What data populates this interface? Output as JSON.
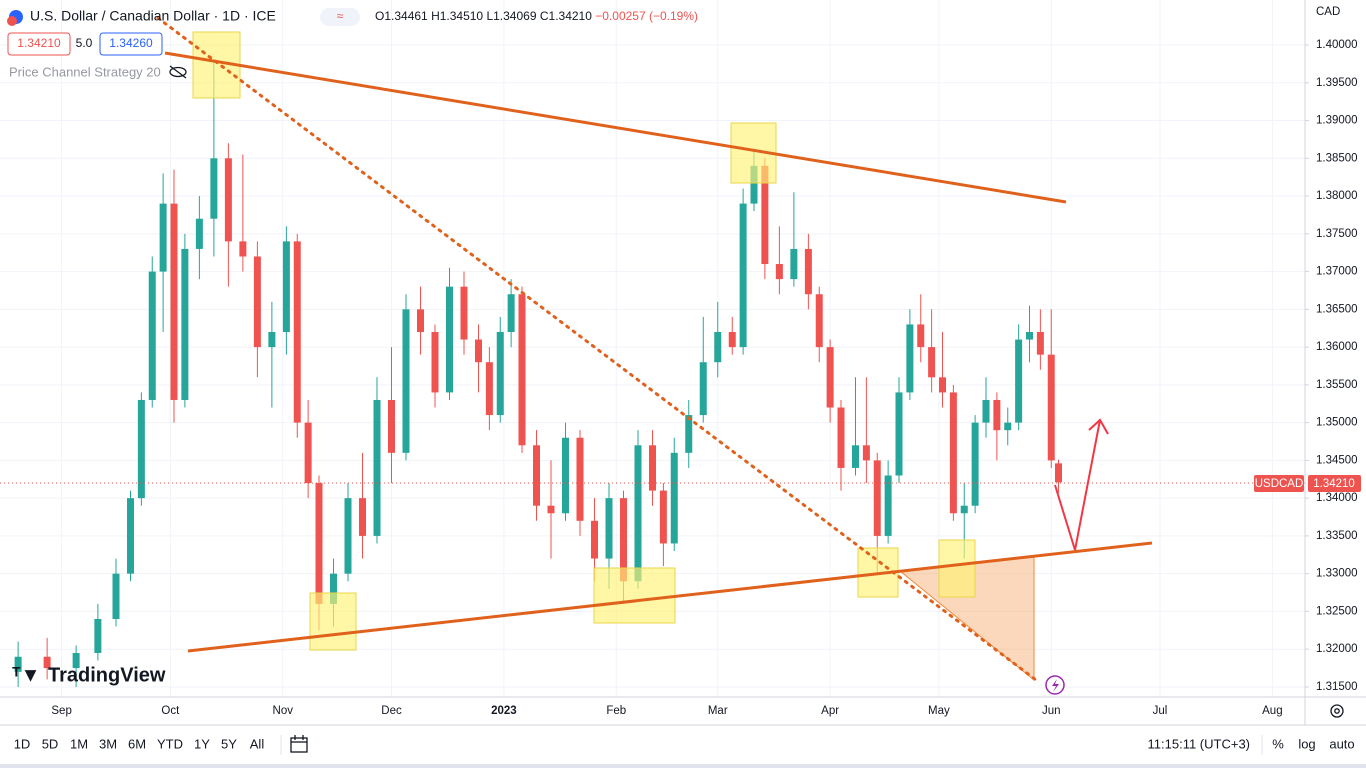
{
  "header": {
    "title": "U.S. Dollar / Canadian Dollar · 1D · ICE",
    "open": "O1.34461",
    "high": "H1.34510",
    "low": "L1.34069",
    "close": "C1.34210",
    "change": "−0.00257 (−0.19%)",
    "sell": "1.34210",
    "spread": "5.0",
    "buy": "1.34260",
    "indicator": "Price Channel Strategy 20"
  },
  "logo": "TradingView",
  "currency": "CAD",
  "price_label": {
    "symbol": "USDCAD",
    "price": "1.34210"
  },
  "toolbar": {
    "ranges": [
      "1D",
      "5D",
      "1M",
      "3M",
      "6M",
      "YTD",
      "1Y",
      "5Y",
      "All"
    ],
    "clock": "11:15:11 (UTC+3)",
    "percent": "%",
    "log": "log",
    "auto": "auto"
  },
  "chart_data": {
    "type": "candlestick",
    "up_color": "#26a69a",
    "down_color": "#ef5350",
    "grid": true,
    "x": [
      -12,
      -4,
      4,
      10,
      15,
      19,
      22,
      25,
      28,
      31,
      34,
      38,
      42,
      46,
      50,
      54,
      58,
      62,
      65,
      68,
      71,
      75,
      79,
      83,
      87,
      91,
      95,
      99,
      103,
      107,
      111,
      115,
      118,
      121,
      124,
      127,
      131,
      135,
      139,
      143,
      147,
      151,
      155,
      159,
      163,
      166,
      169,
      173,
      177,
      181,
      185,
      188,
      191,
      194,
      198,
      202,
      206,
      209,
      212,
      215,
      219,
      222,
      225,
      228,
      231,
      234,
      237,
      240,
      243,
      246,
      249,
      252,
      255,
      258,
      261,
      264,
      267,
      270,
      273,
      275
    ],
    "open": [
      1.317,
      1.319,
      1.3175,
      1.3195,
      1.324,
      1.33,
      1.34,
      1.353,
      1.37,
      1.379,
      1.353,
      1.373,
      1.377,
      1.385,
      1.374,
      1.372,
      1.36,
      1.362,
      1.374,
      1.35,
      1.342,
      1.326,
      1.33,
      1.34,
      1.335,
      1.353,
      1.346,
      1.365,
      1.362,
      1.354,
      1.368,
      1.361,
      1.358,
      1.351,
      1.362,
      1.367,
      1.347,
      1.339,
      1.338,
      1.348,
      1.337,
      1.332,
      1.34,
      1.329,
      1.347,
      1.341,
      1.334,
      1.346,
      1.351,
      1.358,
      1.362,
      1.36,
      1.379,
      1.384,
      1.371,
      1.369,
      1.373,
      1.367,
      1.36,
      1.352,
      1.344,
      1.347,
      1.345,
      1.335,
      1.343,
      1.354,
      1.363,
      1.36,
      1.356,
      1.354,
      1.338,
      1.339,
      1.35,
      1.353,
      1.349,
      1.35,
      1.361,
      1.362,
      1.359,
      1.34461
    ],
    "high": [
      1.321,
      1.3215,
      1.3205,
      1.326,
      1.332,
      1.341,
      1.354,
      1.372,
      1.383,
      1.3835,
      1.375,
      1.38,
      1.3977,
      1.387,
      1.3855,
      1.374,
      1.366,
      1.376,
      1.375,
      1.353,
      1.343,
      1.332,
      1.342,
      1.346,
      1.356,
      1.36,
      1.367,
      1.368,
      1.363,
      1.3705,
      1.37,
      1.363,
      1.36,
      1.364,
      1.369,
      1.368,
      1.349,
      1.345,
      1.35,
      1.349,
      1.34,
      1.342,
      1.341,
      1.349,
      1.349,
      1.342,
      1.348,
      1.353,
      1.364,
      1.366,
      1.364,
      1.381,
      1.386,
      1.385,
      1.376,
      1.3805,
      1.375,
      1.368,
      1.361,
      1.353,
      1.356,
      1.356,
      1.346,
      1.345,
      1.356,
      1.365,
      1.367,
      1.365,
      1.362,
      1.355,
      1.342,
      1.351,
      1.356,
      1.354,
      1.352,
      1.363,
      1.3655,
      1.365,
      1.365,
      1.3451
    ],
    "low": [
      1.315,
      1.316,
      1.315,
      1.3185,
      1.323,
      1.329,
      1.339,
      1.352,
      1.362,
      1.35,
      1.352,
      1.369,
      1.372,
      1.368,
      1.37,
      1.356,
      1.352,
      1.359,
      1.348,
      1.34,
      1.3225,
      1.323,
      1.329,
      1.332,
      1.334,
      1.342,
      1.345,
      1.359,
      1.352,
      1.353,
      1.359,
      1.354,
      1.349,
      1.35,
      1.36,
      1.346,
      1.337,
      1.332,
      1.337,
      1.335,
      1.329,
      1.328,
      1.326,
      1.328,
      1.339,
      1.331,
      1.333,
      1.344,
      1.35,
      1.356,
      1.359,
      1.359,
      1.378,
      1.369,
      1.367,
      1.368,
      1.365,
      1.358,
      1.35,
      1.341,
      1.343,
      1.342,
      1.33,
      1.334,
      1.342,
      1.353,
      1.358,
      1.354,
      1.352,
      1.337,
      1.332,
      1.338,
      1.348,
      1.345,
      1.347,
      1.349,
      1.358,
      1.357,
      1.344,
      1.34069
    ],
    "close": [
      1.319,
      1.3175,
      1.3195,
      1.324,
      1.33,
      1.34,
      1.353,
      1.37,
      1.379,
      1.353,
      1.373,
      1.377,
      1.385,
      1.374,
      1.372,
      1.36,
      1.362,
      1.374,
      1.35,
      1.342,
      1.326,
      1.33,
      1.34,
      1.335,
      1.353,
      1.346,
      1.365,
      1.362,
      1.354,
      1.368,
      1.361,
      1.358,
      1.351,
      1.362,
      1.367,
      1.347,
      1.339,
      1.338,
      1.348,
      1.337,
      1.332,
      1.34,
      1.329,
      1.347,
      1.341,
      1.334,
      1.346,
      1.351,
      1.358,
      1.362,
      1.36,
      1.379,
      1.384,
      1.371,
      1.369,
      1.373,
      1.367,
      1.36,
      1.352,
      1.344,
      1.347,
      1.345,
      1.335,
      1.343,
      1.354,
      1.363,
      1.36,
      1.356,
      1.354,
      1.338,
      1.339,
      1.35,
      1.353,
      1.349,
      1.35,
      1.361,
      1.362,
      1.359,
      1.345,
      1.3421
    ],
    "xlim": [
      -17,
      343
    ],
    "xticks": [
      {
        "value": 0,
        "label": "Sep"
      },
      {
        "value": 30,
        "label": "Oct"
      },
      {
        "value": 61,
        "label": "Nov"
      },
      {
        "value": 91,
        "label": "Dec"
      },
      {
        "value": 122,
        "label": "2023"
      },
      {
        "value": 153,
        "label": "Feb"
      },
      {
        "value": 181,
        "label": "Mar"
      },
      {
        "value": 212,
        "label": "Apr"
      },
      {
        "value": 242,
        "label": "May"
      },
      {
        "value": 273,
        "label": "Jun"
      },
      {
        "value": 303,
        "label": "Jul"
      },
      {
        "value": 334,
        "label": "Aug"
      }
    ],
    "ylim": [
      1.31367,
      1.40596
    ],
    "yticks": [
      {
        "value": 1.4,
        "label": "1.40000"
      },
      {
        "value": 1.395,
        "label": "1.39500"
      },
      {
        "value": 1.39,
        "label": "1.39000"
      },
      {
        "value": 1.385,
        "label": "1.38500"
      },
      {
        "value": 1.38,
        "label": "1.38000"
      },
      {
        "value": 1.375,
        "label": "1.37500"
      },
      {
        "value": 1.37,
        "label": "1.37000"
      },
      {
        "value": 1.365,
        "label": "1.36500"
      },
      {
        "value": 1.36,
        "label": "1.36000"
      },
      {
        "value": 1.355,
        "label": "1.35500"
      },
      {
        "value": 1.35,
        "label": "1.35000"
      },
      {
        "value": 1.345,
        "label": "1.34500"
      },
      {
        "value": 1.34,
        "label": "1.34000"
      },
      {
        "value": 1.335,
        "label": "1.33500"
      },
      {
        "value": 1.33,
        "label": "1.33000"
      },
      {
        "value": 1.325,
        "label": "1.32500"
      },
      {
        "value": 1.32,
        "label": "1.32000"
      },
      {
        "value": 1.315,
        "label": "1.31500"
      }
    ]
  }
}
